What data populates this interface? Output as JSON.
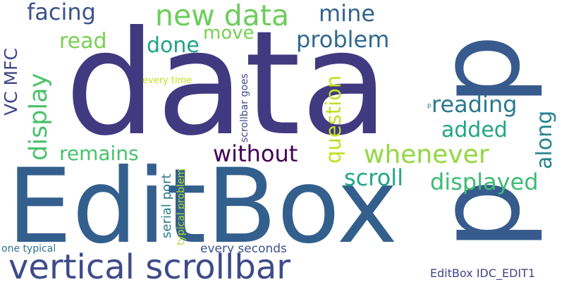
{
  "word_cloud": {
    "words": [
      {
        "text": "data",
        "color": "#413a80"
      },
      {
        "text": "EditBox",
        "color": "#335f8d"
      },
      {
        "text": "p",
        "color": "#375b8c"
      },
      {
        "text": "p",
        "color": "#375b8c"
      },
      {
        "text": "vertical scrollbar",
        "color": "#3e4a89"
      },
      {
        "text": "new data",
        "color": "#6ccd5a"
      },
      {
        "text": "facing",
        "color": "#3a538b"
      },
      {
        "text": "mine",
        "color": "#33638d"
      },
      {
        "text": "move",
        "color": "#76d152"
      },
      {
        "text": "read",
        "color": "#79d151"
      },
      {
        "text": "done",
        "color": "#20a386"
      },
      {
        "text": "problem",
        "color": "#30698e"
      },
      {
        "text": "display",
        "color": "#4cc26c"
      },
      {
        "text": "VC MFC",
        "color": "#414487"
      },
      {
        "text": "every time",
        "color": "#c8e020"
      },
      {
        "text": "question",
        "color": "#c2df23"
      },
      {
        "text": "reading",
        "color": "#2a788e"
      },
      {
        "text": "added",
        "color": "#21a585"
      },
      {
        "text": "along",
        "color": "#25838e"
      },
      {
        "text": "whenever",
        "color": "#93d741"
      },
      {
        "text": "remains",
        "color": "#4ac16d"
      },
      {
        "text": "without",
        "color": "#440154"
      },
      {
        "text": "scroll",
        "color": "#22a785"
      },
      {
        "text": "displayed",
        "color": "#3cbb75"
      },
      {
        "text": "scrollbar goes",
        "color": "#3e4989"
      },
      {
        "text": "serial port",
        "color": "#2a788e"
      },
      {
        "text": "typical problem",
        "color": "#addc30"
      },
      {
        "text": "one typical",
        "color": "#2c728e"
      },
      {
        "text": "every seconds",
        "color": "#3b528b"
      },
      {
        "text": "EditBox IDC_EDIT1",
        "color": "#414487"
      },
      {
        "text": "p",
        "color": "#2a788e"
      }
    ]
  }
}
